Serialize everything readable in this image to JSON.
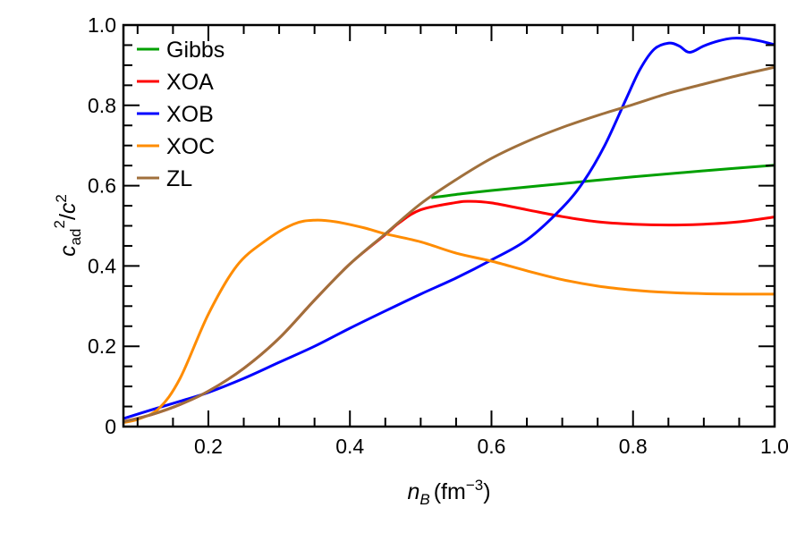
{
  "chart_data": {
    "type": "line",
    "title": "",
    "xlabel": {
      "symbol": "n",
      "subscript": "B",
      "unit": "(fm",
      "unit_exp": "−3",
      "unit_close": ")"
    },
    "ylabel": {
      "symbol": "c",
      "subscript": "ad",
      "sup": "2",
      "slash": "/",
      "symbol2": "c",
      "sup2": "2"
    },
    "xlim": [
      0.08,
      1.0
    ],
    "ylim": [
      0,
      1.0
    ],
    "x_ticks": [
      0.2,
      0.4,
      0.6,
      0.8,
      1.0
    ],
    "x_tick_labels": [
      "0.2",
      "0.4",
      "0.6",
      "0.8",
      "1.0"
    ],
    "y_ticks": [
      0,
      0.2,
      0.4,
      0.6,
      0.8,
      1.0
    ],
    "y_tick_labels": [
      "0",
      "0.2",
      "0.4",
      "0.6",
      "0.8",
      "1.0"
    ],
    "grid": false,
    "legend_placement": "top-left",
    "series": [
      {
        "name": "Gibbs",
        "color": "#00a000",
        "x": [
          0.515,
          0.55,
          0.6,
          0.7,
          0.8,
          0.9,
          1.0
        ],
        "y": [
          0.57,
          0.578,
          0.588,
          0.605,
          0.622,
          0.637,
          0.651
        ]
      },
      {
        "name": "XOA",
        "color": "#ff0000",
        "x": [
          0.08,
          0.12,
          0.16,
          0.2,
          0.25,
          0.3,
          0.35,
          0.4,
          0.45,
          0.47,
          0.5,
          0.55,
          0.57,
          0.6,
          0.65,
          0.7,
          0.75,
          0.8,
          0.85,
          0.9,
          0.95,
          1.0
        ],
        "y": [
          0.012,
          0.03,
          0.055,
          0.088,
          0.145,
          0.22,
          0.315,
          0.405,
          0.478,
          0.508,
          0.54,
          0.558,
          0.561,
          0.557,
          0.54,
          0.523,
          0.51,
          0.504,
          0.502,
          0.504,
          0.51,
          0.522
        ]
      },
      {
        "name": "XOB",
        "color": "#0000ff",
        "x": [
          0.08,
          0.12,
          0.16,
          0.2,
          0.25,
          0.3,
          0.35,
          0.4,
          0.45,
          0.5,
          0.55,
          0.6,
          0.65,
          0.7,
          0.73,
          0.76,
          0.79,
          0.81,
          0.83,
          0.85,
          0.865,
          0.88,
          0.9,
          0.92,
          0.94,
          0.96,
          0.98,
          1.0
        ],
        "y": [
          0.02,
          0.042,
          0.063,
          0.085,
          0.12,
          0.16,
          0.2,
          0.245,
          0.288,
          0.33,
          0.37,
          0.415,
          0.465,
          0.545,
          0.61,
          0.7,
          0.815,
          0.89,
          0.94,
          0.955,
          0.948,
          0.932,
          0.948,
          0.96,
          0.967,
          0.966,
          0.96,
          0.951
        ]
      },
      {
        "name": "XOC",
        "color": "#ff8c00",
        "x": [
          0.08,
          0.1,
          0.13,
          0.16,
          0.2,
          0.24,
          0.28,
          0.32,
          0.35,
          0.38,
          0.42,
          0.45,
          0.5,
          0.55,
          0.6,
          0.65,
          0.7,
          0.75,
          0.8,
          0.85,
          0.9,
          0.95,
          1.0
        ],
        "y": [
          0.01,
          0.018,
          0.045,
          0.12,
          0.28,
          0.4,
          0.462,
          0.504,
          0.514,
          0.51,
          0.495,
          0.48,
          0.46,
          0.432,
          0.412,
          0.388,
          0.366,
          0.35,
          0.34,
          0.334,
          0.331,
          0.33,
          0.33
        ]
      },
      {
        "name": "ZL",
        "color": "#a0703c",
        "x": [
          0.08,
          0.12,
          0.16,
          0.2,
          0.25,
          0.3,
          0.35,
          0.4,
          0.45,
          0.5,
          0.55,
          0.6,
          0.65,
          0.7,
          0.75,
          0.8,
          0.85,
          0.9,
          0.95,
          1.0
        ],
        "y": [
          0.012,
          0.03,
          0.055,
          0.088,
          0.145,
          0.22,
          0.315,
          0.405,
          0.48,
          0.555,
          0.615,
          0.668,
          0.71,
          0.745,
          0.775,
          0.802,
          0.83,
          0.853,
          0.875,
          0.895
        ]
      }
    ]
  }
}
